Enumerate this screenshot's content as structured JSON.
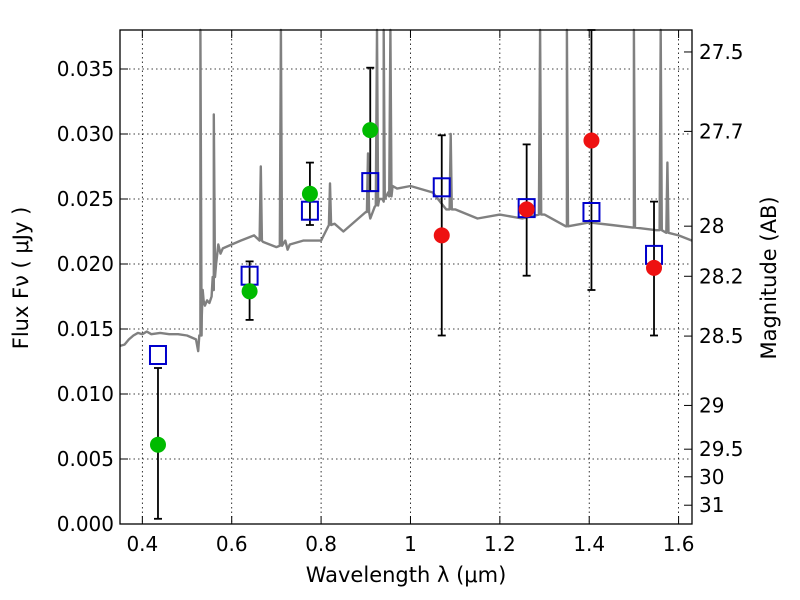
{
  "chart_data": {
    "type": "scatter",
    "xlabel": "Wavelength  λ (μm)",
    "ylabel": "Flux  Fν  ( μJy )",
    "y2label": "Magnitude (AB)",
    "xlim": [
      0.35,
      1.63
    ],
    "ylim": [
      0.0,
      0.038
    ],
    "grid": true,
    "x_ticks": [
      0.4,
      0.6,
      0.8,
      1.0,
      1.2,
      1.4,
      1.6
    ],
    "x_tick_labels": [
      "0.4",
      "0.6",
      "0.8",
      "1",
      "1.2",
      "1.4",
      "1.6"
    ],
    "y_ticks": [
      0.0,
      0.005,
      0.01,
      0.015,
      0.02,
      0.025,
      0.03,
      0.035
    ],
    "y_tick_labels": [
      "0.000",
      "0.005",
      "0.010",
      "0.015",
      "0.020",
      "0.025",
      "0.030",
      "0.035"
    ],
    "mag_ticks": [
      27.5,
      27.7,
      28,
      28.2,
      28.5,
      29,
      29.5,
      30,
      31
    ],
    "mag_tick_labels": [
      "27.5",
      "27.7",
      "28",
      "28.2",
      "28.5",
      "29",
      "29.5",
      "30",
      "31"
    ],
    "colors": {
      "sed_line": "#808080",
      "model_marker": "#0000cc",
      "optical_points": "#00bb00",
      "nir_points": "#ee1111",
      "errorbar": "#000000"
    },
    "sed_model": {
      "x": [
        0.35,
        0.36,
        0.37,
        0.38,
        0.39,
        0.4,
        0.41,
        0.42,
        0.44,
        0.46,
        0.48,
        0.5,
        0.52,
        0.525,
        0.53,
        0.533,
        0.535,
        0.537,
        0.54,
        0.545,
        0.55,
        0.555,
        0.56,
        0.565,
        0.57,
        0.575,
        0.58,
        0.6,
        0.62,
        0.65,
        0.67,
        0.7,
        0.72,
        0.725,
        0.73,
        0.76,
        0.8,
        0.83,
        0.85,
        0.9,
        0.91,
        0.92,
        0.93,
        0.94,
        0.95,
        0.96,
        0.97,
        1.0,
        1.05,
        1.08,
        1.1,
        1.15,
        1.2,
        1.25,
        1.3,
        1.35,
        1.4,
        1.45,
        1.5,
        1.55,
        1.6,
        1.63
      ],
      "y": [
        0.0137,
        0.0138,
        0.0142,
        0.0145,
        0.0147,
        0.0146,
        0.0148,
        0.0146,
        0.0147,
        0.0146,
        0.0146,
        0.0145,
        0.0142,
        0.0133,
        0.0145,
        0.016,
        0.018,
        0.0172,
        0.0168,
        0.0172,
        0.017,
        0.0175,
        0.018,
        0.02,
        0.0215,
        0.0208,
        0.0212,
        0.0215,
        0.0218,
        0.0222,
        0.0217,
        0.0213,
        0.0218,
        0.0211,
        0.0215,
        0.0218,
        0.0218,
        0.0231,
        0.0225,
        0.024,
        0.0235,
        0.0244,
        0.025,
        0.0248,
        0.0255,
        0.026,
        0.0258,
        0.026,
        0.0255,
        0.0242,
        0.0242,
        0.0235,
        0.0238,
        0.0235,
        0.0238,
        0.0229,
        0.0232,
        0.023,
        0.0228,
        0.0226,
        0.0222,
        0.0218
      ]
    },
    "emission_lines": [
      {
        "x": 0.53,
        "peak": 0.038,
        "base": 0.0145
      },
      {
        "x": 0.56,
        "peak": 0.0315,
        "base": 0.019
      },
      {
        "x": 0.665,
        "peak": 0.0275,
        "base": 0.0218
      },
      {
        "x": 0.71,
        "peak": 0.038,
        "base": 0.0214
      },
      {
        "x": 0.82,
        "peak": 0.0262,
        "base": 0.023
      },
      {
        "x": 0.905,
        "peak": 0.0285,
        "base": 0.024
      },
      {
        "x": 0.925,
        "peak": 0.038,
        "base": 0.0245
      },
      {
        "x": 0.94,
        "peak": 0.038,
        "base": 0.025
      },
      {
        "x": 0.955,
        "peak": 0.038,
        "base": 0.0252
      },
      {
        "x": 1.09,
        "peak": 0.03,
        "base": 0.0242
      },
      {
        "x": 1.29,
        "peak": 0.038,
        "base": 0.0238
      },
      {
        "x": 1.35,
        "peak": 0.038,
        "base": 0.0229
      },
      {
        "x": 1.5,
        "peak": 0.038,
        "base": 0.0228
      },
      {
        "x": 1.56,
        "peak": 0.038,
        "base": 0.0226
      },
      {
        "x": 1.575,
        "peak": 0.0278,
        "base": 0.0224
      }
    ],
    "model_photometry": [
      {
        "x": 0.435,
        "y": 0.013
      },
      {
        "x": 0.64,
        "y": 0.0191
      },
      {
        "x": 0.775,
        "y": 0.0241
      },
      {
        "x": 0.91,
        "y": 0.0263
      },
      {
        "x": 1.07,
        "y": 0.0259
      },
      {
        "x": 1.26,
        "y": 0.0243
      },
      {
        "x": 1.405,
        "y": 0.024
      },
      {
        "x": 1.545,
        "y": 0.0207
      }
    ],
    "observed": [
      {
        "x": 0.435,
        "y": 0.0061,
        "err_lo": 0.0004,
        "err_hi": 0.012,
        "group": "optical"
      },
      {
        "x": 0.64,
        "y": 0.0179,
        "err_lo": 0.0157,
        "err_hi": 0.0202,
        "group": "optical"
      },
      {
        "x": 0.775,
        "y": 0.0254,
        "err_lo": 0.023,
        "err_hi": 0.0278,
        "group": "optical"
      },
      {
        "x": 0.91,
        "y": 0.0303,
        "err_lo": 0.0256,
        "err_hi": 0.0351,
        "group": "optical"
      },
      {
        "x": 1.07,
        "y": 0.0222,
        "err_lo": 0.0145,
        "err_hi": 0.0299,
        "group": "nir"
      },
      {
        "x": 1.26,
        "y": 0.0242,
        "err_lo": 0.0191,
        "err_hi": 0.0292,
        "group": "nir"
      },
      {
        "x": 1.405,
        "y": 0.0295,
        "err_lo": 0.018,
        "err_hi": 0.038,
        "group": "nir"
      },
      {
        "x": 1.545,
        "y": 0.0197,
        "err_lo": 0.0145,
        "err_hi": 0.0248,
        "group": "nir"
      }
    ]
  }
}
